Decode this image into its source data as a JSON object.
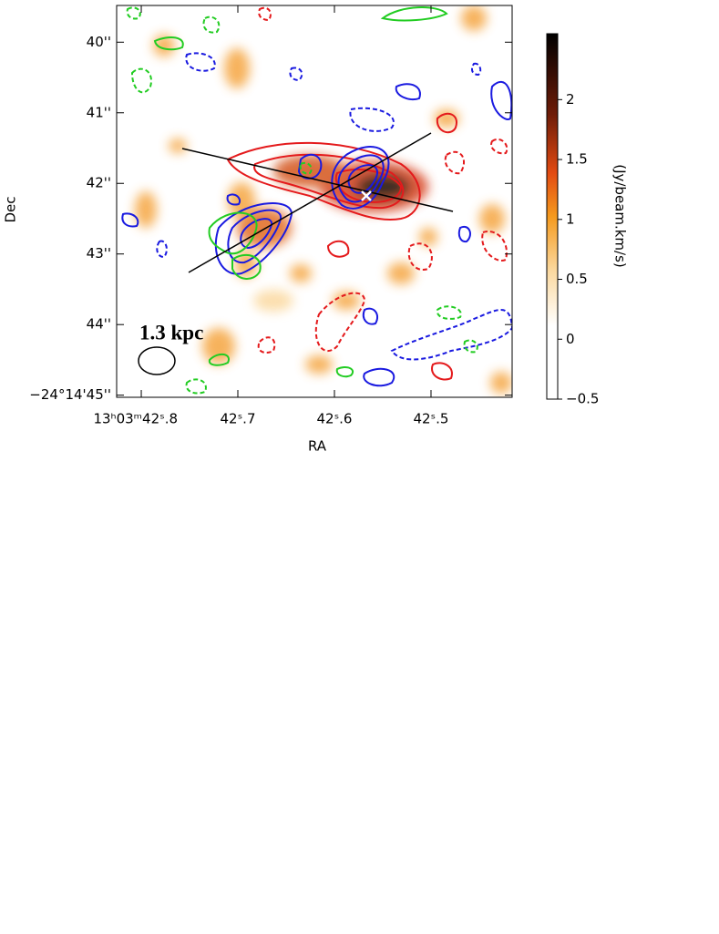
{
  "chart_data": {
    "type": "image",
    "xlabel": "RA",
    "ylabel": "Dec",
    "colorbar_label": "(Jy/beam.km/s)",
    "annotation": "1.3 kpc",
    "xlim": [
      42.8255,
      42.416
    ],
    "xticks": [
      {
        "value": 42.8,
        "label": "13ʰ03ᵐ42ˢ.8"
      },
      {
        "value": 42.7,
        "label": "42ˢ.7"
      },
      {
        "value": 42.6,
        "label": "42ˢ.6"
      },
      {
        "value": 42.5,
        "label": "42ˢ.5"
      }
    ],
    "ylim": [
      39.48,
      45.03
    ],
    "yticks": [
      {
        "value": 40,
        "label": "40''"
      },
      {
        "value": 41,
        "label": "41''"
      },
      {
        "value": 42,
        "label": "42''"
      },
      {
        "value": 43,
        "label": "43''"
      },
      {
        "value": 44,
        "label": "44''"
      },
      {
        "value": 45,
        "label": "−24°14'45''"
      }
    ],
    "clim": [
      -0.5,
      2.55
    ],
    "cticks": [
      {
        "value": 2,
        "label": "2"
      },
      {
        "value": 1.5,
        "label": "1.5"
      },
      {
        "value": 1,
        "label": "1"
      },
      {
        "value": 0.5,
        "label": "0.5"
      },
      {
        "value": 0,
        "label": "0"
      },
      {
        "value": -0.5,
        "label": "−0.5"
      }
    ]
  }
}
